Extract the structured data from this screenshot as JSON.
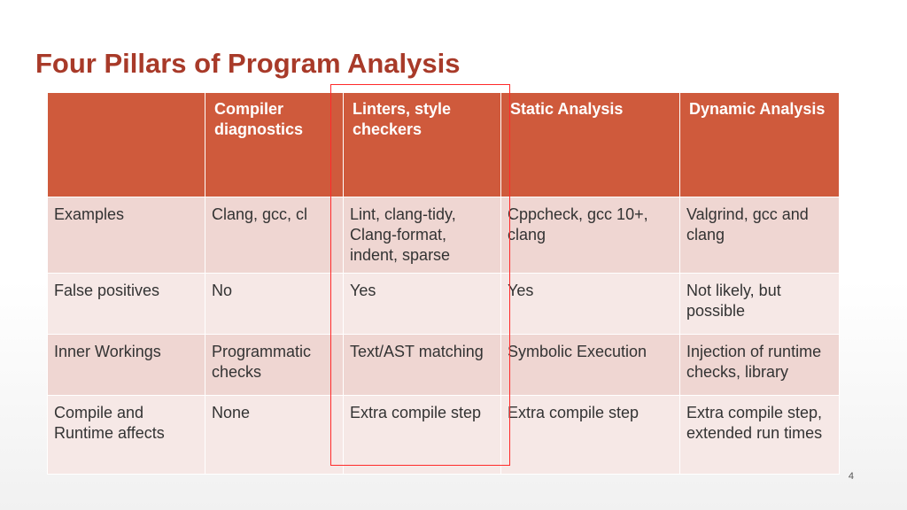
{
  "slide": {
    "title": "Four Pillars of Program Analysis",
    "page_number": "4"
  },
  "table": {
    "headers": [
      "",
      "Compiler diagnostics",
      "Linters, style checkers",
      "Static Analysis",
      "Dynamic Analysis"
    ],
    "rows": [
      [
        "Examples",
        "Clang, gcc, cl",
        "Lint, clang-tidy, Clang-format, indent, sparse",
        "Cppcheck, gcc 10+, clang",
        "Valgrind, gcc and clang"
      ],
      [
        "False positives",
        "No",
        "Yes",
        "Yes",
        "Not likely, but possible"
      ],
      [
        "Inner Workings",
        "Programmatic checks",
        "Text/AST matching",
        "Symbolic Execution",
        "Injection of runtime checks, library"
      ],
      [
        "Compile and Runtime affects",
        "None",
        "Extra compile step",
        "Extra compile step",
        "Extra compile step, extended run times"
      ]
    ]
  },
  "colors": {
    "title": "#a83a29",
    "header_fill": "#cf5a3c",
    "row_fill_dark": "#efd6d2",
    "row_fill_light": "#f6e8e6",
    "highlight_border": "#ff2a2a"
  }
}
